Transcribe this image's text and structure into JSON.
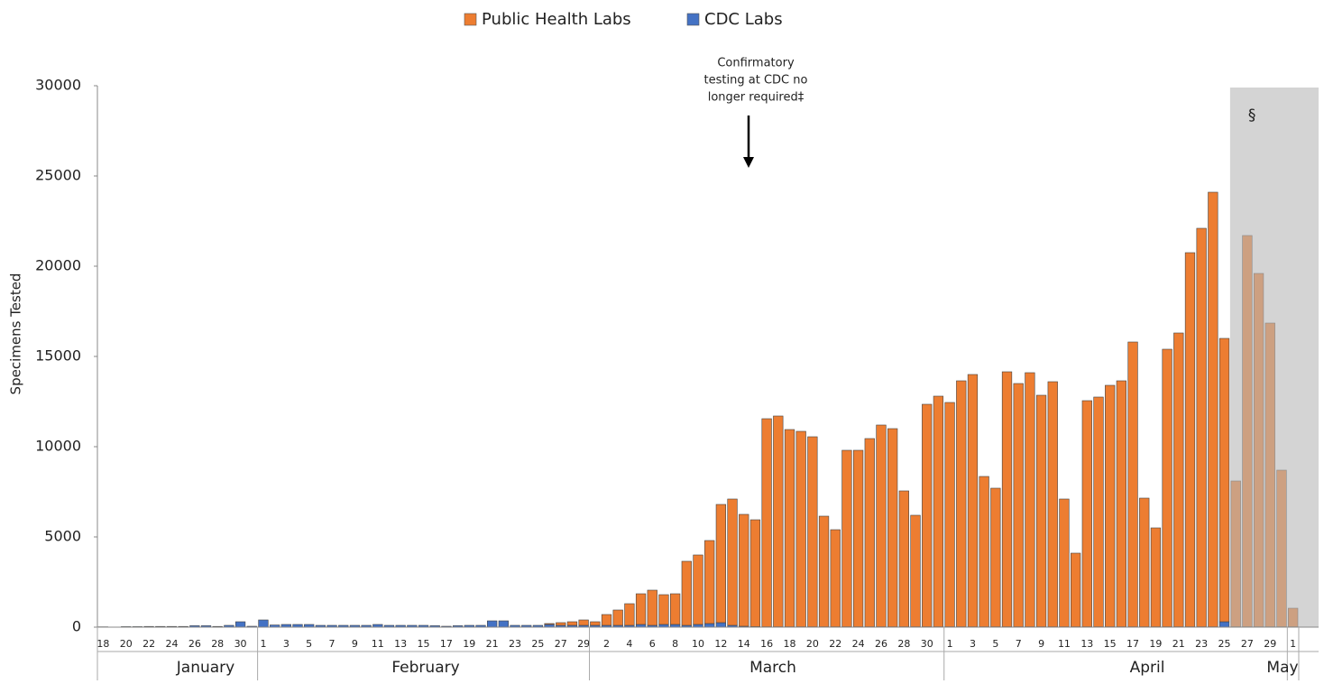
{
  "chart_data": {
    "type": "stacked_bar",
    "y_label": "Specimens Tested",
    "annotation": [
      "Confirmatory",
      "testing at CDC no",
      "longer required‡"
    ],
    "shade_label": "§",
    "months": [
      "January",
      "February",
      "March",
      "April",
      "May"
    ],
    "categories": [
      "18",
      null,
      "20",
      null,
      "22",
      null,
      "24",
      null,
      "26",
      null,
      "28",
      null,
      "30",
      null,
      "1",
      null,
      "3",
      null,
      "5",
      null,
      "7",
      null,
      "9",
      null,
      "11",
      null,
      "13",
      null,
      "15",
      null,
      "17",
      null,
      "19",
      null,
      "21",
      null,
      "23",
      null,
      "25",
      null,
      "27",
      null,
      "29",
      null,
      "2",
      null,
      "4",
      null,
      "6",
      null,
      "8",
      null,
      "10",
      null,
      "12",
      null,
      "14",
      null,
      "16",
      null,
      "18",
      null,
      "20",
      null,
      "22",
      null,
      "24",
      null,
      "26",
      null,
      "28",
      null,
      "30",
      null,
      "1",
      null,
      "3",
      null,
      "5",
      null,
      "7",
      null,
      "9",
      null,
      "11",
      null,
      "13",
      null,
      "15",
      null,
      "17",
      null,
      "19",
      null,
      "21",
      null,
      "23",
      null,
      "25",
      null,
      "27",
      null,
      "29",
      null,
      "1"
    ],
    "series": [
      {
        "name": "CDC Labs",
        "color": "#4472c4",
        "values": [
          20,
          0,
          30,
          30,
          40,
          40,
          40,
          40,
          80,
          80,
          40,
          100,
          300,
          50,
          400,
          120,
          150,
          150,
          150,
          100,
          100,
          100,
          100,
          100,
          150,
          100,
          100,
          100,
          100,
          80,
          50,
          80,
          100,
          100,
          350,
          350,
          100,
          100,
          100,
          150,
          100,
          100,
          100,
          100,
          100,
          100,
          100,
          150,
          100,
          150,
          150,
          100,
          150,
          200,
          250,
          100,
          50,
          30,
          20,
          20,
          20,
          20,
          20,
          20,
          20,
          20,
          20,
          20,
          20,
          20,
          20,
          20,
          20,
          20,
          20,
          20,
          20,
          20,
          20,
          20,
          20,
          20,
          20,
          20,
          20,
          20,
          20,
          20,
          20,
          20,
          20,
          20,
          20,
          20,
          20,
          20,
          20,
          20,
          300,
          20,
          20,
          20,
          20,
          20,
          20
        ]
      },
      {
        "name": "Public Health Labs",
        "color": "#ed7d31",
        "values": [
          0,
          0,
          0,
          0,
          0,
          0,
          0,
          0,
          0,
          0,
          0,
          0,
          0,
          0,
          0,
          0,
          0,
          0,
          0,
          0,
          0,
          0,
          0,
          0,
          0,
          0,
          0,
          0,
          0,
          0,
          0,
          0,
          0,
          0,
          0,
          0,
          0,
          0,
          0,
          50,
          150,
          200,
          300,
          200,
          600,
          850,
          1200,
          1700,
          1950,
          1650,
          1700,
          3550,
          3850,
          4600,
          6550,
          7000,
          6200,
          5920,
          11530,
          11680,
          10930,
          10830,
          10530,
          6130,
          5380,
          9780,
          9780,
          10430,
          11180,
          10980,
          7530,
          6180,
          12330,
          12780,
          12430,
          13630,
          13980,
          8330,
          7680,
          14130,
          13480,
          14080,
          12830,
          13580,
          7080,
          4080,
          12530,
          12730,
          13380,
          13630,
          15780,
          7130,
          5480,
          15380,
          16280,
          20730,
          22080,
          24080,
          15700,
          8080,
          21680,
          19580,
          16830,
          8680,
          1030
        ]
      }
    ],
    "legend_order": [
      1,
      0
    ],
    "ylim": [
      0,
      30000
    ],
    "yticks": [
      0,
      5000,
      10000,
      15000,
      20000,
      25000,
      30000
    ]
  }
}
